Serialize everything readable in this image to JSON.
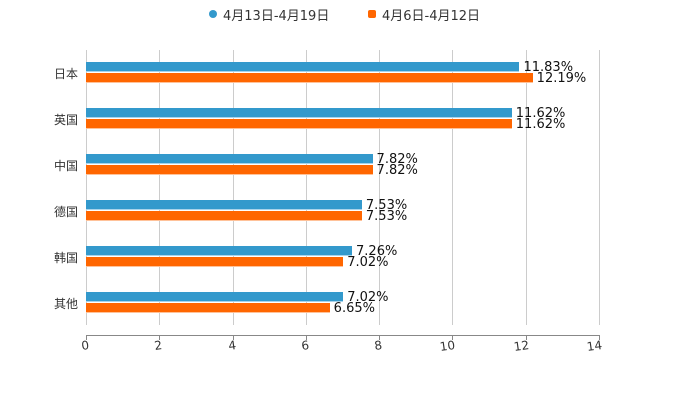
{
  "legend": [
    {
      "label": "4月13日-4月19日",
      "color": "#3399cc",
      "shape": "circle"
    },
    {
      "label": "4月6日-4月12日",
      "color": "#ff6600",
      "shape": "square"
    }
  ],
  "chart_data": {
    "type": "bar",
    "orientation": "horizontal",
    "title": "",
    "xlabel": "",
    "ylabel": "",
    "categories": [
      "日本",
      "英国",
      "中国",
      "德国",
      "韩国",
      "其他"
    ],
    "series": [
      {
        "name": "4月13日-4月19日",
        "color": "#3399cc",
        "values": [
          11.83,
          11.62,
          7.82,
          7.53,
          7.26,
          7.02
        ],
        "labels": [
          "11.83%",
          "11.62%",
          "7.82%",
          "7.53%",
          "7.26%",
          "7.02%"
        ]
      },
      {
        "name": "4月6日-4月12日",
        "color": "#ff6600",
        "values": [
          12.19,
          11.62,
          7.82,
          7.53,
          7.02,
          6.65
        ],
        "labels": [
          "12.19%",
          "11.62%",
          "7.82%",
          "7.53%",
          "7.02%",
          "6.65%"
        ]
      }
    ],
    "xlim": [
      0,
      14
    ],
    "x_ticks": [
      "0",
      "2",
      "4",
      "6",
      "8",
      "10",
      "12",
      "14"
    ],
    "grid": true,
    "legend_position": "top"
  }
}
